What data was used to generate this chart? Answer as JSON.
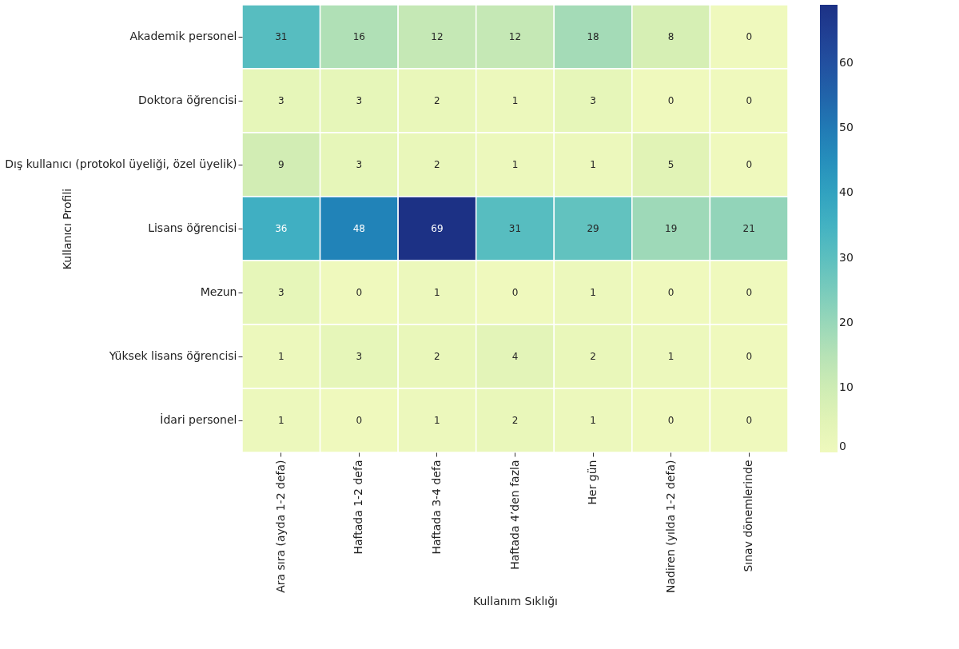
{
  "chart_data": {
    "type": "heatmap",
    "xlabel": "Kullanım Sıklığı",
    "ylabel": "Kullanıcı Profili",
    "categories": [
      "Ara sıra (ayda 1-2 defa)",
      "Haftada 1-2 defa",
      "Haftada 3-4 defa",
      "Haftada 4’den fazla",
      "Her gün",
      "Nadiren (yılda 1-2 defa)",
      "Sınav dönemlerinde"
    ],
    "y_categories": [
      "Akademik personel",
      "Doktora öğrencisi",
      "Dış kullanıcı (protokol üyeliği, özel üyelik)",
      "Lisans öğrencisi",
      "Mezun",
      "Yüksek lisans öğrencisi",
      "İdari personel"
    ],
    "cells": [
      [
        31,
        16,
        12,
        12,
        18,
        8,
        0
      ],
      [
        3,
        3,
        2,
        1,
        3,
        0,
        0
      ],
      [
        9,
        3,
        2,
        1,
        1,
        5,
        0
      ],
      [
        36,
        48,
        69,
        31,
        29,
        19,
        21
      ],
      [
        3,
        0,
        1,
        0,
        1,
        0,
        0
      ],
      [
        1,
        3,
        2,
        4,
        2,
        1,
        0
      ],
      [
        1,
        0,
        1,
        2,
        1,
        0,
        0
      ]
    ],
    "data_labels": true,
    "clim": [
      0,
      69
    ],
    "cticks": [
      0,
      10,
      20,
      30,
      40,
      50,
      60
    ]
  }
}
